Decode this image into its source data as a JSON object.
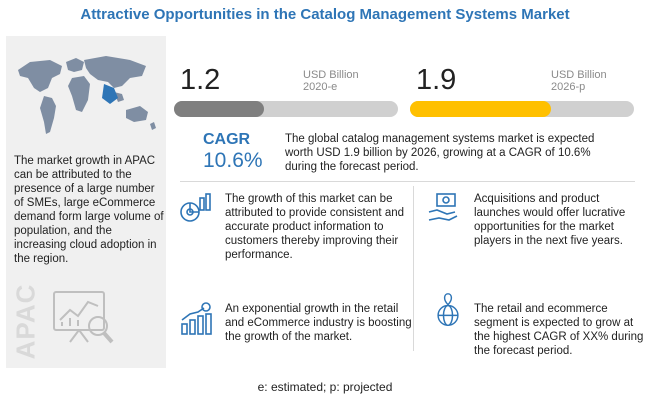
{
  "title": "Attractive Opportunities in the Catalog Management Systems Market",
  "left_panel": {
    "text": "The market growth in APAC can be attributed to the presence of a large number of SMEs, large eCommerce demand form large volume of population, and the increasing cloud adoption in the region.",
    "region_label": "APAC"
  },
  "market_2020": {
    "value": "1.2",
    "unit": "USD Billion",
    "year": "2020-e",
    "bar_fraction": 0.4,
    "color": "#7f7f7f"
  },
  "market_2026": {
    "value": "1.9",
    "unit": "USD Billion",
    "year": "2026-p",
    "bar_fraction": 0.63,
    "color": "#ffc000"
  },
  "cagr": {
    "label": "CAGR",
    "value": "10.6%",
    "text": "The global catalog management systems market is expected worth USD 1.9 billion  by 2026, growing at a CAGR of 10.6% during the forecast period."
  },
  "blocks": [
    {
      "text": "The growth of this market can be attributed to provide consistent and accurate product information to customers thereby improving their performance.",
      "icon": "chart-gears-icon"
    },
    {
      "text": "Acquisitions and product launches would offer lucrative opportunities for the market players in the next five years.",
      "icon": "money-hand-icon"
    },
    {
      "text": "An exponential growth in the retail and eCommerce industry  is boosting the growth of the market.",
      "icon": "growth-bars-icon"
    },
    {
      "text": "The retail and ecommerce segment is expected to grow at the highest CAGR of XX% during the forecast period.",
      "icon": "globe-pin-icon"
    }
  ],
  "footnote": "e: estimated; p: projected",
  "colors": {
    "accent": "#2e75b6",
    "gray_bar": "#7f7f7f",
    "yellow_bar": "#ffc000",
    "panel": "#f0f0f0"
  }
}
